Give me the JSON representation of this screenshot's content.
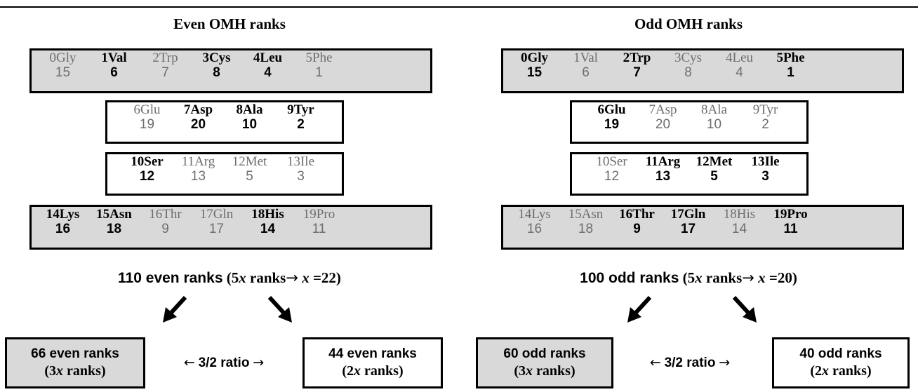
{
  "panels": [
    {
      "heading": "Even OMH ranks",
      "rows": [
        [
          {
            "name": "0Gly",
            "rank": "15",
            "bold": false
          },
          {
            "name": "1Val",
            "rank": "6",
            "bold": true
          },
          {
            "name": "2Trp",
            "rank": "7",
            "bold": false
          },
          {
            "name": "3Cys",
            "rank": "8",
            "bold": true
          },
          {
            "name": "4Leu",
            "rank": "4",
            "bold": true
          },
          {
            "name": "5Phe",
            "rank": "1",
            "bold": false
          }
        ],
        [
          {
            "name": "6Glu",
            "rank": "19",
            "bold": false
          },
          {
            "name": "7Asp",
            "rank": "20",
            "bold": true
          },
          {
            "name": "8Ala",
            "rank": "10",
            "bold": true
          },
          {
            "name": "9Tyr",
            "rank": "2",
            "bold": true
          }
        ],
        [
          {
            "name": "10Ser",
            "rank": "12",
            "bold": true
          },
          {
            "name": "11Arg",
            "rank": "13",
            "bold": false
          },
          {
            "name": "12Met",
            "rank": "5",
            "bold": false
          },
          {
            "name": "13Ile",
            "rank": "3",
            "bold": false
          }
        ],
        [
          {
            "name": "14Lys",
            "rank": "16",
            "bold": true
          },
          {
            "name": "15Asn",
            "rank": "18",
            "bold": true
          },
          {
            "name": "16Thr",
            "rank": "9",
            "bold": false
          },
          {
            "name": "17Gln",
            "rank": "17",
            "bold": false
          },
          {
            "name": "18His",
            "rank": "14",
            "bold": true
          },
          {
            "name": "19Pro",
            "rank": "11",
            "bold": false
          }
        ]
      ],
      "total_bold": "110 even ranks",
      "total_rest": " (5",
      "total_x": "x",
      "total_rest2": " ranks",
      "total_arrow": "→",
      "total_x2": " x",
      "total_rest3": " =22)",
      "left_box": {
        "line1": "66 even ranks",
        "line2_open": "(3",
        "line2_x": "x",
        "line2_close": " ranks)"
      },
      "right_box": {
        "line1": "44 even ranks",
        "line2_open": "(2",
        "line2_x": "x",
        "line2_close": " ranks)"
      },
      "ratio": {
        "left": "←",
        "text": "3/2 ratio",
        "right": "→"
      }
    },
    {
      "heading": "Odd OMH ranks",
      "rows": [
        [
          {
            "name": "0Gly",
            "rank": "15",
            "bold": true
          },
          {
            "name": "1Val",
            "rank": "6",
            "bold": false
          },
          {
            "name": "2Trp",
            "rank": "7",
            "bold": true
          },
          {
            "name": "3Cys",
            "rank": "8",
            "bold": false
          },
          {
            "name": "4Leu",
            "rank": "4",
            "bold": false
          },
          {
            "name": "5Phe",
            "rank": "1",
            "bold": true
          }
        ],
        [
          {
            "name": "6Glu",
            "rank": "19",
            "bold": true
          },
          {
            "name": "7Asp",
            "rank": "20",
            "bold": false
          },
          {
            "name": "8Ala",
            "rank": "10",
            "bold": false
          },
          {
            "name": "9Tyr",
            "rank": "2",
            "bold": false
          }
        ],
        [
          {
            "name": "10Ser",
            "rank": "12",
            "bold": false
          },
          {
            "name": "11Arg",
            "rank": "13",
            "bold": true
          },
          {
            "name": "12Met",
            "rank": "5",
            "bold": true
          },
          {
            "name": "13Ile",
            "rank": "3",
            "bold": true
          }
        ],
        [
          {
            "name": "14Lys",
            "rank": "16",
            "bold": false
          },
          {
            "name": "15Asn",
            "rank": "18",
            "bold": false
          },
          {
            "name": "16Thr",
            "rank": "9",
            "bold": true
          },
          {
            "name": "17Gln",
            "rank": "17",
            "bold": true
          },
          {
            "name": "18His",
            "rank": "14",
            "bold": false
          },
          {
            "name": "19Pro",
            "rank": "11",
            "bold": true
          }
        ]
      ],
      "total_bold": "100 odd ranks",
      "total_rest": " (5",
      "total_x": "x",
      "total_rest2": " ranks",
      "total_arrow": "→",
      "total_x2": " x",
      "total_rest3": " =20)",
      "left_box": {
        "line1": "60 odd ranks",
        "line2_open": "(3",
        "line2_x": "x",
        "line2_close": " ranks)"
      },
      "right_box": {
        "line1": "40 odd ranks",
        "line2_open": "(2",
        "line2_x": "x",
        "line2_close": " ranks)"
      },
      "ratio": {
        "left": "←",
        "text": "3/2 ratio",
        "right": "→"
      }
    }
  ]
}
